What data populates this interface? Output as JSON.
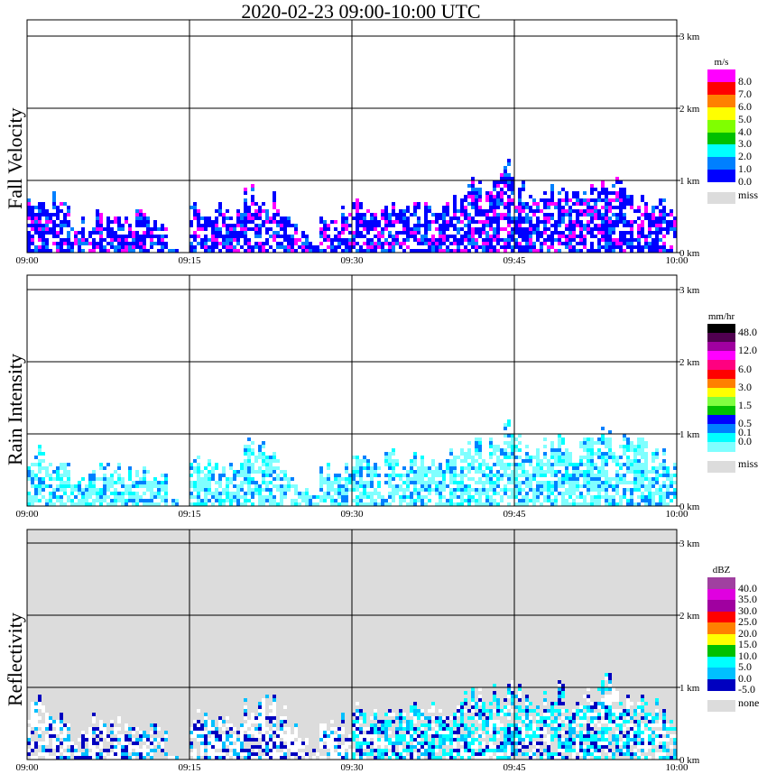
{
  "title": "2020-02-23   09:00-10:00 UTC",
  "chart_data": {
    "type": "heatmap",
    "title": "2020-02-23   09:00-10:00 UTC",
    "x_ticks": [
      "09:00",
      "09:15",
      "09:30",
      "09:45",
      "10:00"
    ],
    "y_ticks": [
      "0 km",
      "1 km",
      "2 km",
      "3 km"
    ],
    "ylim_km": [
      0,
      3.2
    ],
    "grid": true,
    "echo_top_km_per_minute": [
      0.8,
      0.85,
      0.8,
      0.7,
      0.4,
      0.5,
      0.6,
      0.55,
      0.6,
      0.55,
      0.6,
      0.5,
      0.45,
      0.1,
      0.0,
      0.75,
      0.7,
      0.65,
      0.6,
      0.6,
      0.9,
      0.95,
      0.85,
      0.7,
      0.5,
      0.3,
      0.2,
      0.55,
      0.6,
      0.6,
      0.8,
      0.75,
      0.7,
      0.75,
      0.7,
      0.75,
      0.7,
      0.8,
      0.7,
      0.75,
      0.95,
      1.0,
      0.9,
      1.05,
      1.2,
      1.0,
      0.95,
      1.0,
      0.95,
      1.05,
      0.9,
      1.0,
      0.95,
      1.1,
      1.0,
      1.0,
      0.9,
      0.85,
      0.8,
      0.65
    ],
    "panels": [
      {
        "name": "Fall Velocity",
        "unit": "m/s",
        "missing_label": "miss",
        "background": "#ffffff",
        "boxes": [
          {
            "color": "#ff00ff",
            "label": "8.0"
          },
          {
            "color": "#ff0000",
            "label": "7.0"
          },
          {
            "color": "#ff8000",
            "label": "6.0"
          },
          {
            "color": "#ffff00",
            "label": "5.0"
          },
          {
            "color": "#80ff00",
            "label": "4.0"
          },
          {
            "color": "#00c000",
            "label": "3.0"
          },
          {
            "color": "#00ffff",
            "label": "2.0"
          },
          {
            "color": "#0080ff",
            "label": "1.0"
          },
          {
            "color": "#0000ff",
            "label": "0.0"
          }
        ],
        "dominant_colors": [
          "#0000ff",
          "#0000ff",
          "#0080ff",
          "#0000ff",
          "#ff00ff"
        ]
      },
      {
        "name": "Rain Intensity",
        "unit": "mm/hr",
        "missing_label": "miss",
        "background": "#ffffff",
        "boxes": [
          {
            "color": "#000000",
            "label": "48.0"
          },
          {
            "color": "#500050",
            "label": ""
          },
          {
            "color": "#a000a0",
            "label": "12.0"
          },
          {
            "color": "#ff00ff",
            "label": ""
          },
          {
            "color": "#ff0080",
            "label": "6.0"
          },
          {
            "color": "#ff0000",
            "label": ""
          },
          {
            "color": "#ff8000",
            "label": "3.0"
          },
          {
            "color": "#ffff00",
            "label": ""
          },
          {
            "color": "#80ff40",
            "label": "1.5"
          },
          {
            "color": "#00c000",
            "label": ""
          },
          {
            "color": "#0000ff",
            "label": "0.5"
          },
          {
            "color": "#0080ff",
            "label": "0.1"
          },
          {
            "color": "#00ffff",
            "label": "0.0"
          },
          {
            "color": "#80ffff",
            "label": ""
          }
        ],
        "dominant_colors": [
          "#80ffff",
          "#80ffff",
          "#80ffff",
          "#00ffff",
          "#0080ff"
        ]
      },
      {
        "name": "Reflectivity",
        "unit": "dBZ",
        "missing_label": "none",
        "background": "#dcdcdc",
        "boxes": [
          {
            "color": "#a040a0",
            "label": "40.0"
          },
          {
            "color": "#e000e0",
            "label": "35.0"
          },
          {
            "color": "#a000a0",
            "label": "30.0"
          },
          {
            "color": "#ff0000",
            "label": "25.0"
          },
          {
            "color": "#ff8000",
            "label": "20.0"
          },
          {
            "color": "#ffff00",
            "label": "15.0"
          },
          {
            "color": "#00c000",
            "label": "10.0"
          },
          {
            "color": "#00ffff",
            "label": "5.0"
          },
          {
            "color": "#00c0ff",
            "label": "0.0"
          },
          {
            "color": "#0000c0",
            "label": "-5.0"
          }
        ],
        "dominant_colors": [
          "#00ffff",
          "#00c0ff",
          "#0000c0",
          "#00ffff",
          "#ffffff"
        ]
      }
    ]
  }
}
